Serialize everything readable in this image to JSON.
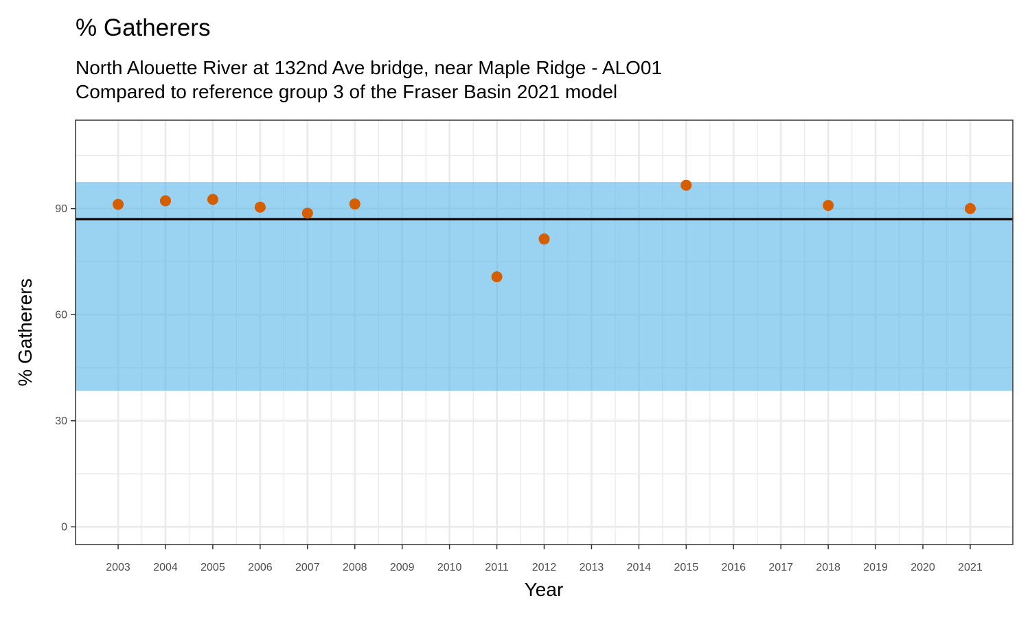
{
  "chart_data": {
    "type": "scatter",
    "title": "% Gatherers",
    "subtitle_lines": [
      "North Alouette River at 132nd Ave bridge, near Maple Ridge - ALO01",
      "Compared to reference group 3 of the Fraser Basin 2021 model"
    ],
    "xlabel": "Year",
    "ylabel": "% Gatherers",
    "xlim": [
      2002.1,
      2021.9
    ],
    "ylim": [
      -5,
      115
    ],
    "x_ticks": [
      2003,
      2004,
      2005,
      2006,
      2007,
      2008,
      2009,
      2010,
      2011,
      2012,
      2013,
      2014,
      2015,
      2016,
      2017,
      2018,
      2019,
      2020,
      2021
    ],
    "y_ticks": [
      0,
      30,
      60,
      90
    ],
    "y_minor_ticks": [
      15,
      45,
      75,
      105
    ],
    "reference_band": {
      "ymin": 38.5,
      "ymax": 97.5,
      "color": "#56B4E9",
      "opacity": 0.6
    },
    "reference_line": {
      "y": 87,
      "color": "#000000"
    },
    "point_color": "#D55E00",
    "grid": true,
    "series": [
      {
        "name": "% Gatherers",
        "points": [
          {
            "x": 2003,
            "y": 91.2
          },
          {
            "x": 2004,
            "y": 92.2
          },
          {
            "x": 2005,
            "y": 92.6
          },
          {
            "x": 2006,
            "y": 90.4
          },
          {
            "x": 2007,
            "y": 88.7
          },
          {
            "x": 2008,
            "y": 91.3
          },
          {
            "x": 2011,
            "y": 70.7
          },
          {
            "x": 2012,
            "y": 81.4
          },
          {
            "x": 2015,
            "y": 96.6
          },
          {
            "x": 2018,
            "y": 90.9
          },
          {
            "x": 2021,
            "y": 90.0
          }
        ]
      }
    ]
  }
}
